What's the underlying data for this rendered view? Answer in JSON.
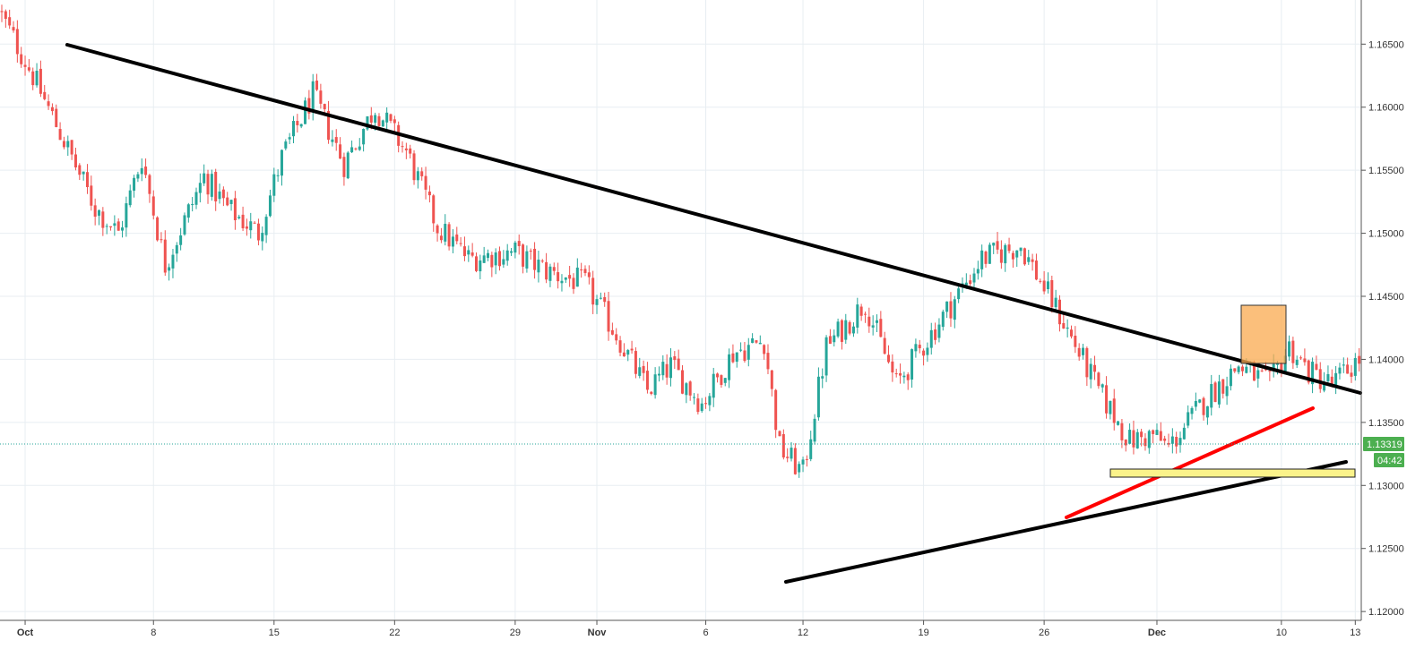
{
  "chart_data": {
    "type": "candlestick",
    "price_axis": {
      "ticks": [
        "1.16500",
        "1.16000",
        "1.15500",
        "1.15000",
        "1.14500",
        "1.14000",
        "1.13500",
        "1.13000",
        "1.12500",
        "1.12000"
      ],
      "tick_values": [
        1.165,
        1.16,
        1.155,
        1.15,
        1.145,
        1.14,
        1.135,
        1.13,
        1.125,
        1.12
      ],
      "range": [
        1.1193,
        1.1685
      ]
    },
    "time_axis": {
      "ticks": [
        "Oct",
        "8",
        "15",
        "22",
        "29",
        "Nov",
        "6",
        "12",
        "19",
        "26",
        "Dec",
        "10",
        "13"
      ],
      "tick_index": [
        6,
        39,
        70,
        101,
        132,
        153,
        181,
        206,
        237,
        268,
        297,
        329,
        348
      ],
      "bar_count": 350
    },
    "anchors": [
      [
        0,
        1.1672
      ],
      [
        8,
        1.1625
      ],
      [
        18,
        1.156
      ],
      [
        24,
        1.152
      ],
      [
        30,
        1.15
      ],
      [
        36,
        1.156
      ],
      [
        42,
        1.1475
      ],
      [
        52,
        1.1545
      ],
      [
        58,
        1.152
      ],
      [
        66,
        1.15
      ],
      [
        72,
        1.156
      ],
      [
        80,
        1.161
      ],
      [
        88,
        1.1555
      ],
      [
        96,
        1.16
      ],
      [
        104,
        1.1565
      ],
      [
        112,
        1.1505
      ],
      [
        120,
        1.148
      ],
      [
        132,
        1.1485
      ],
      [
        140,
        1.147
      ],
      [
        150,
        1.146
      ],
      [
        158,
        1.142
      ],
      [
        166,
        1.1375
      ],
      [
        172,
        1.1395
      ],
      [
        180,
        1.1365
      ],
      [
        188,
        1.1405
      ],
      [
        196,
        1.1415
      ],
      [
        200,
        1.133
      ],
      [
        206,
        1.131
      ],
      [
        212,
        1.141
      ],
      [
        222,
        1.1445
      ],
      [
        230,
        1.138
      ],
      [
        240,
        1.1425
      ],
      [
        252,
        1.148
      ],
      [
        262,
        1.149
      ],
      [
        272,
        1.1435
      ],
      [
        282,
        1.1375
      ],
      [
        290,
        1.1335
      ],
      [
        296,
        1.134
      ],
      [
        300,
        1.133
      ],
      [
        310,
        1.137
      ],
      [
        318,
        1.1395
      ],
      [
        326,
        1.138
      ],
      [
        331,
        1.141
      ],
      [
        336,
        1.139
      ],
      [
        342,
        1.138
      ],
      [
        349,
        1.14
      ]
    ],
    "current_price": "1.13319",
    "countdown": "04:42",
    "colors": {
      "up": "#26a69a",
      "down": "#ef5350",
      "grid": "#e8eef2",
      "axis": "#555555",
      "badge": "#4caf50"
    }
  }
}
